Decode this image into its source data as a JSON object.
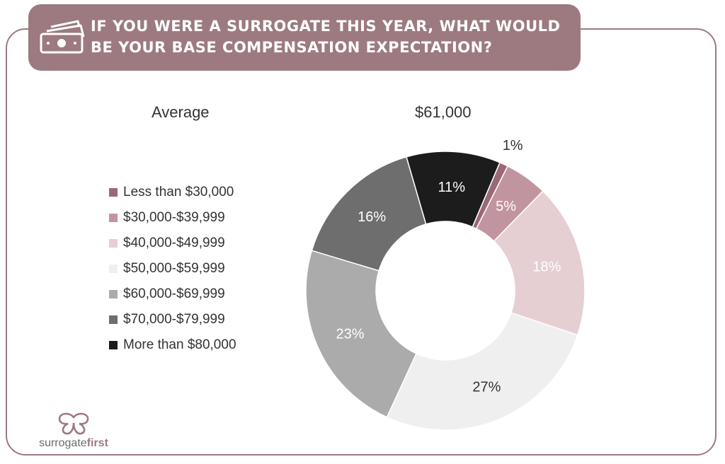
{
  "header": {
    "title": "IF YOU WERE A SURROGATE THIS YEAR, WHAT WOULD BE YOUR BASE COMPENSATION EXPECTATION?",
    "icon": "money-icon"
  },
  "summary": {
    "label": "Average",
    "value": "$61,000"
  },
  "chart_data": {
    "type": "pie",
    "donut": true,
    "categories": [
      "Less than $30,000",
      "$30,000-$39,999",
      "$40,000-$49,999",
      "$50,000-$59,999",
      "$60,000-$69,999",
      "$70,000-$79,999",
      "More than $80,000"
    ],
    "values": [
      1,
      5,
      18,
      27,
      23,
      16,
      11
    ],
    "value_labels": [
      "1%",
      "5%",
      "18%",
      "27%",
      "23%",
      "16%",
      "11%"
    ],
    "colors": [
      "#9b6878",
      "#c1959f",
      "#e5cfd3",
      "#efefef",
      "#ababab",
      "#6e6e6e",
      "#1c1c1c"
    ],
    "label_colors": [
      "#333333",
      "#ffffff",
      "#ffffff",
      "#333333",
      "#ffffff",
      "#ffffff",
      "#ffffff"
    ],
    "legend_position": "left"
  },
  "brand": {
    "name_part1": "surrogate",
    "name_part2": "first",
    "icon": "butterfly-logo-icon",
    "accent": "#9c7a80"
  }
}
